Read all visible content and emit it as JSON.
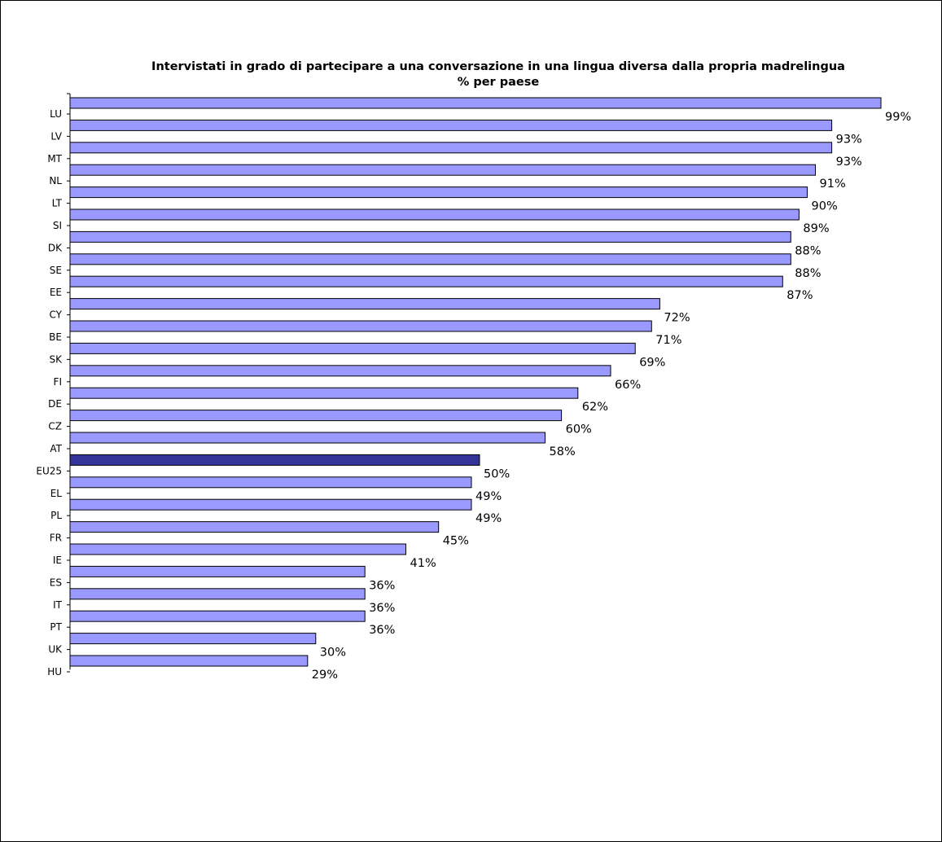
{
  "chart_data": {
    "type": "bar",
    "orientation": "horizontal",
    "title": "Intervistati in grado di partecipare a una conversazione in una lingua diversa dalla propria madrelingua",
    "subtitle": "% per paese",
    "categories": [
      "LU",
      "LV",
      "MT",
      "NL",
      "LT",
      "SI",
      "DK",
      "SE",
      "EE",
      "CY",
      "BE",
      "SK",
      "FI",
      "DE",
      "CZ",
      "AT",
      "EU25",
      "EL",
      "PL",
      "FR",
      "IE",
      "ES",
      "IT",
      "PT",
      "UK",
      "HU"
    ],
    "values": [
      99,
      93,
      93,
      91,
      90,
      89,
      88,
      88,
      87,
      72,
      71,
      69,
      66,
      62,
      60,
      58,
      50,
      49,
      49,
      45,
      41,
      36,
      36,
      36,
      30,
      29
    ],
    "data_labels": [
      "99%",
      "93%",
      "93%",
      "91%",
      "90%",
      "89%",
      "88%",
      "88%",
      "87%",
      "72%",
      "71%",
      "69%",
      "66%",
      "62%",
      "60%",
      "58%",
      "50%",
      "49%",
      "49%",
      "45%",
      "41%",
      "36%",
      "36%",
      "36%",
      "30%",
      "29%"
    ],
    "xlim": [
      0,
      99
    ],
    "grid": false,
    "legend": "none",
    "highlight_category": "EU25",
    "colors": {
      "bar": "#9999ff",
      "highlight": "#333399",
      "outline": "#000000"
    }
  }
}
